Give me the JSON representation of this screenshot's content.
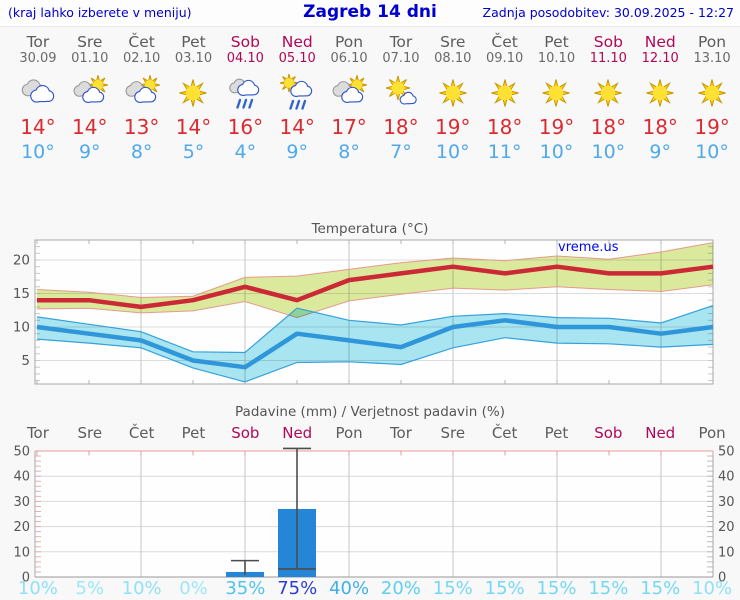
{
  "header": {
    "left_note": "(kraj lahko izberete v meniju)",
    "title": "Zagreb 14 dni",
    "updated": "Zadnja posodobitev: 30.09.2025 - 12:27"
  },
  "watermark": "vreme.us",
  "colors": {
    "header_blue": "#0000cc",
    "day_gray": "#5c5c5c",
    "date_gray": "#6a6a6a",
    "weekend": "#b00857",
    "temp_high": "#d92b31",
    "temp_low": "#4fa9ea",
    "title_gray": "#555555",
    "line_high": "#cc2936",
    "line_low": "#2f96da",
    "band_high_fill": "#dcea9e",
    "band_high_edge": "#e59a8b",
    "band_low_fill": "#a9e6f2",
    "band_low_edge": "#35a1dd",
    "bar_blue": "#2585d6",
    "whisker_gray": "#4d4d4d",
    "grid_light": "#dddddd",
    "grid_vert": "#c6c6c6",
    "frame": "#a8a8a8",
    "pink_axis": "#e89c9c",
    "pink_tick": "#e4b0b0"
  },
  "forecast": {
    "days": [
      {
        "name": "Tor",
        "date": "30.09",
        "weekend": false,
        "icon": "cloudy",
        "high": "14°",
        "low": "10°"
      },
      {
        "name": "Sre",
        "date": "01.10",
        "weekend": false,
        "icon": "partly-cloudy",
        "high": "14°",
        "low": "9°"
      },
      {
        "name": "Čet",
        "date": "02.10",
        "weekend": false,
        "icon": "partly-cloudy",
        "high": "13°",
        "low": "8°"
      },
      {
        "name": "Pet",
        "date": "03.10",
        "weekend": false,
        "icon": "sunny",
        "high": "14°",
        "low": "5°"
      },
      {
        "name": "Sob",
        "date": "04.10",
        "weekend": true,
        "icon": "rain",
        "high": "16°",
        "low": "4°"
      },
      {
        "name": "Ned",
        "date": "05.10",
        "weekend": true,
        "icon": "sun-rain",
        "high": "14°",
        "low": "9°"
      },
      {
        "name": "Pon",
        "date": "06.10",
        "weekend": false,
        "icon": "partly-cloudy",
        "high": "17°",
        "low": "8°"
      },
      {
        "name": "Tor",
        "date": "07.10",
        "weekend": false,
        "icon": "mostly-sunny",
        "high": "18°",
        "low": "7°"
      },
      {
        "name": "Sre",
        "date": "08.10",
        "weekend": false,
        "icon": "sunny",
        "high": "19°",
        "low": "10°"
      },
      {
        "name": "Čet",
        "date": "09.10",
        "weekend": false,
        "icon": "sunny",
        "high": "18°",
        "low": "11°"
      },
      {
        "name": "Pet",
        "date": "10.10",
        "weekend": false,
        "icon": "sunny",
        "high": "19°",
        "low": "10°"
      },
      {
        "name": "Sob",
        "date": "11.10",
        "weekend": true,
        "icon": "sunny",
        "high": "18°",
        "low": "10°"
      },
      {
        "name": "Ned",
        "date": "12.10",
        "weekend": true,
        "icon": "sunny",
        "high": "18°",
        "low": "9°"
      },
      {
        "name": "Pon",
        "date": "13.10",
        "weekend": false,
        "icon": "sunny",
        "high": "19°",
        "low": "10°"
      }
    ]
  },
  "chart_data": [
    {
      "type": "line",
      "title": "Temperatura (°C)",
      "categories": [
        "Tor 30.09",
        "Sre 01.10",
        "Čet 02.10",
        "Pet 03.10",
        "Sob 04.10",
        "Ned 05.10",
        "Pon 06.10",
        "Tor 07.10",
        "Sre 08.10",
        "Čet 09.10",
        "Pet 10.10",
        "Sob 11.10",
        "Ned 12.10",
        "Pon 13.10"
      ],
      "ylim": [
        1.5,
        23
      ],
      "yticks": [
        5,
        10,
        15,
        20
      ],
      "grid": true,
      "legend": "none",
      "series": [
        {
          "name": "high",
          "color": "#cc2936",
          "values": [
            14,
            14,
            13,
            14,
            16,
            14,
            17,
            18,
            19,
            18,
            19,
            18,
            18,
            19
          ]
        },
        {
          "name": "low",
          "color": "#2f96da",
          "values": [
            10,
            9,
            8,
            5,
            4,
            9,
            8,
            7,
            10,
            11,
            10,
            10,
            9,
            10
          ]
        },
        {
          "name": "high_band_max",
          "values": [
            15.6,
            15.2,
            14.4,
            14.6,
            17.4,
            17.6,
            18.6,
            19.6,
            20.3,
            19.9,
            20.6,
            20.1,
            21.2,
            22.6
          ]
        },
        {
          "name": "high_band_min",
          "values": [
            12.7,
            12.8,
            12.1,
            12.4,
            13.8,
            11.4,
            13.9,
            14.9,
            15.8,
            15.5,
            16.0,
            15.6,
            15.3,
            16.3
          ]
        },
        {
          "name": "low_band_max",
          "values": [
            11.5,
            10.4,
            9.3,
            6.3,
            6.2,
            12.8,
            11.0,
            10.3,
            11.6,
            12.0,
            11.4,
            11.3,
            10.6,
            13.2
          ]
        },
        {
          "name": "low_band_min",
          "values": [
            8.2,
            7.6,
            6.9,
            3.9,
            1.8,
            4.7,
            4.8,
            4.4,
            6.9,
            8.4,
            7.6,
            7.5,
            7.0,
            7.4
          ]
        }
      ]
    },
    {
      "type": "bar",
      "title": "Padavine (mm) / Verjetnost padavin (%)",
      "categories": [
        "Tor",
        "Sre",
        "Čet",
        "Pet",
        "Sob",
        "Ned",
        "Pon",
        "Tor",
        "Sre",
        "Čet",
        "Pet",
        "Sob",
        "Ned",
        "Pon"
      ],
      "values_mm": [
        0,
        0,
        0,
        0,
        2,
        27,
        0,
        0,
        0,
        0,
        0,
        0,
        0,
        0
      ],
      "bars": [
        {
          "day_index": 4,
          "amount_mm": 2,
          "range_min_mm": 0,
          "range_max_mm": 6.5
        },
        {
          "day_index": 5,
          "amount_mm": 27,
          "range_min_mm": 3.2,
          "range_max_mm": 51
        }
      ],
      "ylim": [
        0,
        50
      ],
      "yticks": [
        0,
        10,
        20,
        30,
        40,
        50
      ],
      "probabilities": [
        {
          "label": "10%",
          "color": "#8fe1f6"
        },
        {
          "label": "5%",
          "color": "#9ce7f8"
        },
        {
          "label": "10%",
          "color": "#8fe1f6"
        },
        {
          "label": "0%",
          "color": "#9ce7f8"
        },
        {
          "label": "35%",
          "color": "#4fc4ec"
        },
        {
          "label": "75%",
          "color": "#2b3ed2"
        },
        {
          "label": "40%",
          "color": "#3fb0e8"
        },
        {
          "label": "20%",
          "color": "#5ccef0"
        },
        {
          "label": "15%",
          "color": "#74d8f4"
        },
        {
          "label": "15%",
          "color": "#74d8f4"
        },
        {
          "label": "15%",
          "color": "#74d8f4"
        },
        {
          "label": "15%",
          "color": "#74d8f4"
        },
        {
          "label": "15%",
          "color": "#74d8f4"
        },
        {
          "label": "10%",
          "color": "#8fe1f6"
        }
      ]
    }
  ]
}
